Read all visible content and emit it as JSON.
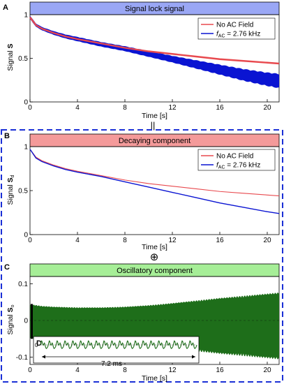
{
  "colors": {
    "no_field": "#e8494e",
    "ac_field": "#0a14d2",
    "oscillatory": "#1e6e1a",
    "banner_a": "#9aa7f5",
    "banner_b": "#f49a9a",
    "banner_c": "#a6ee97",
    "dashed_box": "#1a2fd6"
  },
  "separators": {
    "equals": "||",
    "oplus": "⊕"
  },
  "chart_data": [
    {
      "panel": "A",
      "type": "line",
      "title": "Signal lock signal",
      "xlabel": "Time [s]",
      "ylabel_main": "Signal ",
      "ylabel_sym": "S",
      "ylabel_sub": "",
      "xlim": [
        0,
        21
      ],
      "ylim": [
        0,
        1
      ],
      "xticks": [
        "0",
        "4",
        "8",
        "12",
        "16",
        "20"
      ],
      "yticks": [
        "0",
        "0.5",
        "1"
      ],
      "legend_position": "top-right",
      "series": [
        {
          "name": "No AC Field",
          "legend_main": "No AC Field",
          "legend_sub": "",
          "legend_tail": "",
          "x": [
            0,
            0.5,
            1,
            2,
            3,
            4,
            6,
            8,
            10,
            12,
            14,
            16,
            18,
            20,
            21
          ],
          "y": [
            0.97,
            0.88,
            0.84,
            0.79,
            0.75,
            0.72,
            0.67,
            0.62,
            0.58,
            0.55,
            0.52,
            0.49,
            0.47,
            0.45,
            0.44
          ]
        },
        {
          "name": "fAC = 2.76 kHz",
          "legend_main": "f",
          "legend_sub": "AC",
          "legend_tail": " = 2.76 kHz",
          "x": [
            0,
            0.5,
            1,
            2,
            3,
            4,
            6,
            8,
            10,
            12,
            14,
            16,
            18,
            20,
            21
          ],
          "y": [
            0.97,
            0.88,
            0.84,
            0.79,
            0.75,
            0.72,
            0.66,
            0.61,
            0.55,
            0.49,
            0.43,
            0.37,
            0.31,
            0.26,
            0.24
          ],
          "envelope_halfwidth": [
            0.02,
            0.02,
            0.02,
            0.022,
            0.024,
            0.026,
            0.028,
            0.03,
            0.035,
            0.04,
            0.05,
            0.06,
            0.07,
            0.08,
            0.085
          ]
        }
      ]
    },
    {
      "panel": "B",
      "type": "line",
      "title": "Decaying component",
      "xlabel": "Time [s]",
      "ylabel_main": "Signal ",
      "ylabel_sym": "S",
      "ylabel_sub": "d",
      "xlim": [
        0,
        21
      ],
      "ylim": [
        0,
        1
      ],
      "xticks": [
        "0",
        "4",
        "8",
        "12",
        "16",
        "20"
      ],
      "yticks": [
        "0",
        "0.5",
        "1"
      ],
      "legend_position": "top-right",
      "series": [
        {
          "name": "No AC Field",
          "legend_main": "No AC Field",
          "legend_sub": "",
          "legend_tail": "",
          "x": [
            0,
            0.5,
            1,
            2,
            3,
            4,
            6,
            8,
            10,
            12,
            14,
            16,
            18,
            20,
            21
          ],
          "y": [
            0.97,
            0.88,
            0.84,
            0.79,
            0.75,
            0.72,
            0.67,
            0.62,
            0.58,
            0.55,
            0.52,
            0.49,
            0.47,
            0.45,
            0.44
          ]
        },
        {
          "name": "fAC = 2.76 kHz",
          "legend_main": "f",
          "legend_sub": "AC",
          "legend_tail": " = 2.76 kHz",
          "x": [
            0,
            0.5,
            1,
            2,
            3,
            4,
            6,
            8,
            10,
            12,
            14,
            16,
            18,
            20,
            21
          ],
          "y": [
            0.97,
            0.87,
            0.83,
            0.78,
            0.74,
            0.71,
            0.66,
            0.6,
            0.54,
            0.48,
            0.42,
            0.36,
            0.31,
            0.26,
            0.24
          ]
        }
      ]
    },
    {
      "panel": "C",
      "type": "area",
      "title": "Oscillatory component",
      "xlabel": "Time [s]",
      "ylabel_main": "Signal ",
      "ylabel_sym": "S",
      "ylabel_sub": "o",
      "xlim": [
        0,
        21
      ],
      "ylim": [
        -0.12,
        0.12
      ],
      "xticks": [
        "0",
        "4",
        "8",
        "12",
        "16",
        "20"
      ],
      "yticks": [
        "-0.1",
        "0",
        "0.1"
      ],
      "series": [
        {
          "name": "",
          "x": [
            0,
            1,
            2,
            4,
            6,
            8,
            10,
            12,
            14,
            16,
            18,
            20,
            21
          ],
          "upper": [
            0.045,
            0.04,
            0.038,
            0.036,
            0.036,
            0.038,
            0.042,
            0.048,
            0.055,
            0.062,
            0.068,
            0.074,
            0.077
          ],
          "lower": [
            -0.05,
            -0.055,
            -0.058,
            -0.06,
            -0.063,
            -0.067,
            -0.072,
            -0.078,
            -0.085,
            -0.092,
            -0.098,
            -0.104,
            -0.107
          ]
        }
      ],
      "inset": {
        "label": "D",
        "tick_label": "0",
        "annotation": "7.2 ms",
        "cycles": 20
      }
    }
  ]
}
